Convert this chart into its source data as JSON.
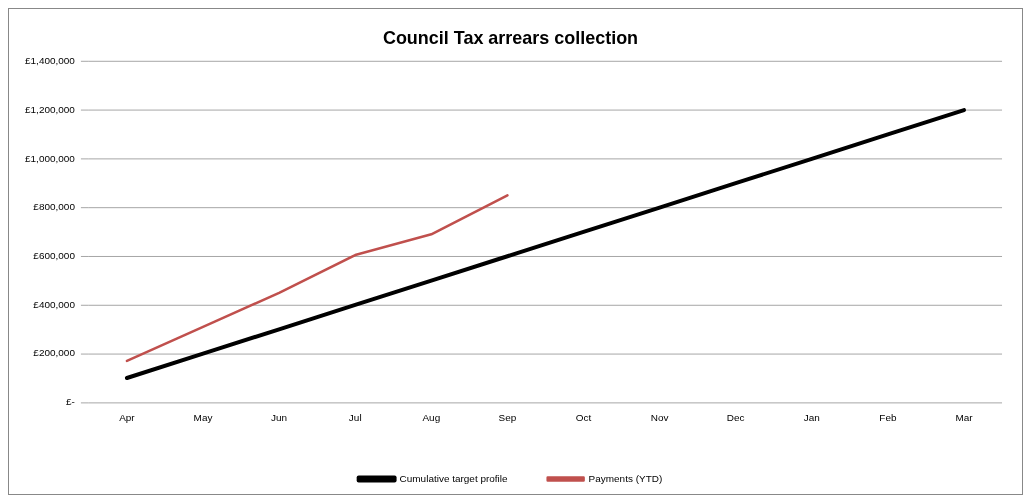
{
  "chart_data": {
    "type": "line",
    "title": "Council Tax arrears collection",
    "categories": [
      "Apr",
      "May",
      "Jun",
      "Jul",
      "Aug",
      "Sep",
      "Oct",
      "Nov",
      "Dec",
      "Jan",
      "Feb",
      "Mar"
    ],
    "series": [
      {
        "name": "Cumulative target profile",
        "color": "#000000",
        "values": [
          100000,
          200000,
          300000,
          400000,
          500000,
          600000,
          700000,
          800000,
          900000,
          1000000,
          1100000,
          1200000
        ]
      },
      {
        "name": "Payments (YTD)",
        "color": "#c0504d",
        "values": [
          170000,
          310000,
          450000,
          605000,
          690000,
          850000,
          null,
          null,
          null,
          null,
          null,
          null
        ]
      }
    ],
    "ylim": [
      0,
      1400000
    ],
    "yticks": [
      {
        "value": 0,
        "label": "£-"
      },
      {
        "value": 200000,
        "label": "£200,000"
      },
      {
        "value": 400000,
        "label": "£400,000"
      },
      {
        "value": 600000,
        "label": "£600,000"
      },
      {
        "value": 800000,
        "label": "£800,000"
      },
      {
        "value": 1000000,
        "label": "£1,000,000"
      },
      {
        "value": 1200000,
        "label": "£1,200,000"
      },
      {
        "value": 1400000,
        "label": "£1,400,000"
      }
    ],
    "grid": "y",
    "legend": "bottom",
    "marker": "none",
    "line_style": "solid"
  }
}
